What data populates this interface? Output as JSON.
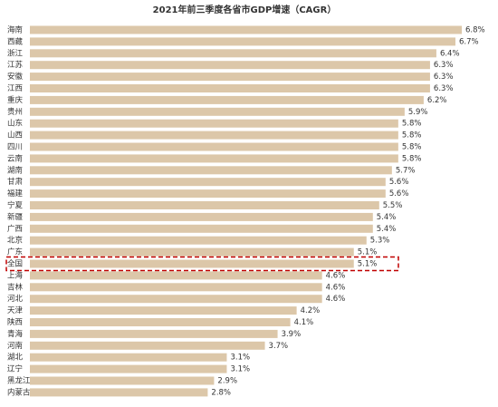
{
  "chart_data": {
    "type": "bar",
    "orientation": "horizontal",
    "title": "2021年前三季度各省市GDP增速（CAGR）",
    "categories": [
      "海南",
      "西藏",
      "浙江",
      "江苏",
      "安徽",
      "江西",
      "重庆",
      "贵州",
      "山东",
      "山西",
      "四川",
      "云南",
      "湖南",
      "甘肃",
      "福建",
      "宁夏",
      "新疆",
      "广西",
      "北京",
      "广东",
      "全国",
      "上海",
      "吉林",
      "河北",
      "天津",
      "陕西",
      "青海",
      "河南",
      "湖北",
      "辽宁",
      "黑龙江",
      "内蒙古"
    ],
    "values": [
      6.8,
      6.7,
      6.4,
      6.3,
      6.3,
      6.3,
      6.2,
      5.9,
      5.8,
      5.8,
      5.8,
      5.8,
      5.7,
      5.6,
      5.6,
      5.5,
      5.4,
      5.4,
      5.3,
      5.1,
      5.1,
      4.6,
      4.6,
      4.6,
      4.2,
      4.1,
      3.9,
      3.7,
      3.1,
      3.1,
      2.9,
      2.8
    ],
    "value_labels": [
      "6.8%",
      "6.7%",
      "6.4%",
      "6.3%",
      "6.3%",
      "6.3%",
      "6.2%",
      "5.9%",
      "5.8%",
      "5.8%",
      "5.8%",
      "5.8%",
      "5.7%",
      "5.6%",
      "5.6%",
      "5.5%",
      "5.4%",
      "5.4%",
      "5.3%",
      "5.1%",
      "5.1%",
      "4.6%",
      "4.6%",
      "4.6%",
      "4.2%",
      "4.1%",
      "3.9%",
      "3.7%",
      "3.1%",
      "3.1%",
      "2.9%",
      "2.8%"
    ],
    "color": "#dcc7a9",
    "highlight": "全国",
    "highlight_color": "#c00000"
  }
}
